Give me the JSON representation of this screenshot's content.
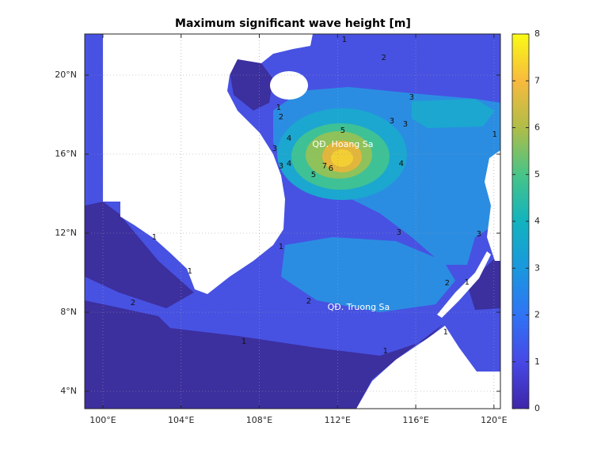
{
  "title": "Maximum significant wave height [m]",
  "map": {
    "xlim": [
      99.07,
      120.33
    ],
    "ylim": [
      3.12,
      22.08
    ],
    "xticks": [
      {
        "value": 100,
        "label": "100°E"
      },
      {
        "value": 104,
        "label": "104°E"
      },
      {
        "value": 108,
        "label": "108°E"
      },
      {
        "value": 112,
        "label": "112°E"
      },
      {
        "value": 116,
        "label": "116°E"
      },
      {
        "value": 120,
        "label": "120°E"
      }
    ],
    "yticks": [
      {
        "value": 4,
        "label": "4°N"
      },
      {
        "value": 8,
        "label": "8°N"
      },
      {
        "value": 12,
        "label": "12°N"
      },
      {
        "value": 16,
        "label": "16°N"
      },
      {
        "value": 20,
        "label": "20°N"
      }
    ],
    "places": [
      {
        "label": "QĐ. Hoang Sa",
        "lon": 112.27,
        "lat": 16.48
      },
      {
        "label": "QĐ. Truong Sa",
        "lon": 113.08,
        "lat": 8.24
      }
    ],
    "contour_labels": [
      {
        "value": 1,
        "lon": 112.35,
        "lat": 21.8
      },
      {
        "value": 2,
        "lon": 114.37,
        "lat": 20.88
      },
      {
        "value": 3,
        "lon": 115.79,
        "lat": 18.88
      },
      {
        "value": 3,
        "lon": 114.78,
        "lat": 17.68
      },
      {
        "value": 3,
        "lon": 115.47,
        "lat": 17.52
      },
      {
        "value": 1,
        "lon": 108.99,
        "lat": 18.36
      },
      {
        "value": 2,
        "lon": 109.11,
        "lat": 17.88
      },
      {
        "value": 3,
        "lon": 108.79,
        "lat": 16.28
      },
      {
        "value": 4,
        "lon": 109.52,
        "lat": 16.8
      },
      {
        "value": 5,
        "lon": 112.27,
        "lat": 17.2
      },
      {
        "value": 3,
        "lon": 109.11,
        "lat": 15.4
      },
      {
        "value": 4,
        "lon": 109.52,
        "lat": 15.52
      },
      {
        "value": 7,
        "lon": 111.34,
        "lat": 15.4
      },
      {
        "value": 6,
        "lon": 111.66,
        "lat": 15.28
      },
      {
        "value": 5,
        "lon": 110.77,
        "lat": 14.96
      },
      {
        "value": 4,
        "lon": 115.26,
        "lat": 15.52
      },
      {
        "value": 3,
        "lon": 115.14,
        "lat": 12.04
      },
      {
        "value": 3,
        "lon": 119.23,
        "lat": 11.96
      },
      {
        "value": 1,
        "lon": 109.11,
        "lat": 11.32
      },
      {
        "value": 1,
        "lon": 102.63,
        "lat": 11.8
      },
      {
        "value": 1,
        "lon": 104.45,
        "lat": 10.08
      },
      {
        "value": 2,
        "lon": 101.54,
        "lat": 8.48
      },
      {
        "value": 2,
        "lon": 110.53,
        "lat": 8.56
      },
      {
        "value": 1,
        "lon": 107.21,
        "lat": 6.52
      },
      {
        "value": 1,
        "lon": 114.45,
        "lat": 6.04
      },
      {
        "value": 2,
        "lon": 117.61,
        "lat": 9.48
      },
      {
        "value": 1,
        "lon": 118.62,
        "lat": 9.52
      },
      {
        "value": 1,
        "lon": 117.53,
        "lat": 7.0
      },
      {
        "value": 1,
        "lon": 120.04,
        "lat": 17.0
      }
    ]
  },
  "colorbar": {
    "limits": [
      0,
      8
    ],
    "ticks": [
      0,
      1,
      2,
      3,
      4,
      5,
      6,
      7,
      8
    ]
  }
}
